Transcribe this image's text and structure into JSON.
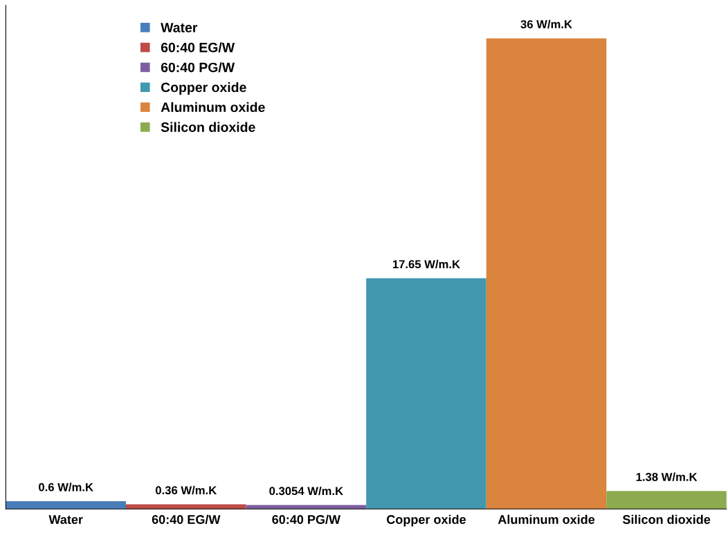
{
  "chart_data": {
    "type": "bar",
    "categories": [
      "Water",
      "60:40 EG/W",
      "60:40 PG/W",
      "Copper oxide",
      "Aluminum oxide",
      "Silicon dioxide"
    ],
    "series": [
      {
        "name": "Water",
        "color": "#4a7ebb",
        "values": [
          0.6,
          null,
          null,
          null,
          null,
          null
        ],
        "value_labels": [
          "0.6 W/m.K",
          null,
          null,
          null,
          null,
          null
        ]
      },
      {
        "name": "60:40 EG/W",
        "color": "#be4b48",
        "values": [
          null,
          0.36,
          null,
          null,
          null,
          null
        ],
        "value_labels": [
          null,
          "0.36 W/m.K",
          null,
          null,
          null,
          null
        ]
      },
      {
        "name": "60:40 PG/W",
        "color": "#7d5fa0",
        "values": [
          null,
          null,
          0.3054,
          null,
          null,
          null
        ],
        "value_labels": [
          null,
          null,
          "0.3054 W/m.K",
          null,
          null,
          null
        ]
      },
      {
        "name": "Copper oxide",
        "color": "#4198af",
        "values": [
          null,
          null,
          null,
          17.65,
          null,
          null
        ],
        "value_labels": [
          null,
          null,
          null,
          "17.65 W/m.K",
          null,
          null
        ]
      },
      {
        "name": "Aluminum oxide",
        "color": "#db843d",
        "values": [
          null,
          null,
          null,
          null,
          36,
          null
        ],
        "value_labels": [
          null,
          null,
          null,
          null,
          "36 W/m.K",
          null
        ]
      },
      {
        "name": "Silicon dioxide",
        "color": "#8cab4f",
        "values": [
          null,
          null,
          null,
          null,
          null,
          1.38
        ],
        "value_labels": [
          null,
          null,
          null,
          null,
          null,
          "1.38 W/m.K"
        ]
      }
    ],
    "stacked": true,
    "legend": "top left"
  }
}
